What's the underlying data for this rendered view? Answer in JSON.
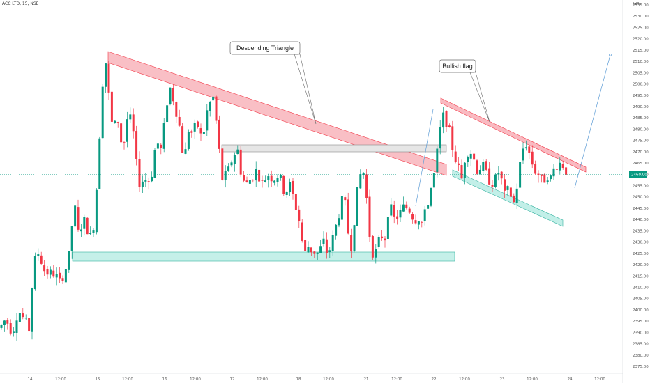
{
  "header": {
    "symbol": "ACC LTD, 15, NSE",
    "currency": "INR"
  },
  "colors": {
    "up": "#089981",
    "down": "#f23645",
    "bg": "#ffffff",
    "grid": "#eef0f3",
    "resistance_fill": "#f7a9b1",
    "support_fill": "#b7ece4",
    "neutral_fill": "#e6e6e6",
    "arrow": "#5b9bd5",
    "price_tag": "#089981"
  },
  "chart_data": {
    "type": "candlestick",
    "y_ticks": [
      "2375.00",
      "2380.00",
      "2385.00",
      "2390.00",
      "2395.00",
      "2400.00",
      "2405.00",
      "2410.00",
      "2415.00",
      "2420.00",
      "2425.00",
      "2430.00",
      "2435.00",
      "2440.00",
      "2445.00",
      "2450.00",
      "2455.00",
      "2460.00",
      "2465.00",
      "2470.00",
      "2475.00",
      "2480.00",
      "2485.00",
      "2490.00",
      "2495.00",
      "2500.00",
      "2505.00",
      "2510.00",
      "2515.00",
      "2520.00",
      "2525.00",
      "2530.00",
      "2535.00"
    ],
    "ylim": [
      2372,
      2537
    ],
    "x_ticks": [
      "14",
      "12:00",
      "15",
      "12:00",
      "16",
      "12:00",
      "17",
      "12:00",
      "18",
      "12:00",
      "21",
      "12:00",
      "22",
      "12:00",
      "23",
      "12:00",
      "24",
      "12:00"
    ],
    "last_price": "2460.00",
    "annotations": [
      {
        "text": "Descending Triangle"
      },
      {
        "text": "Bullish flag"
      }
    ]
  }
}
